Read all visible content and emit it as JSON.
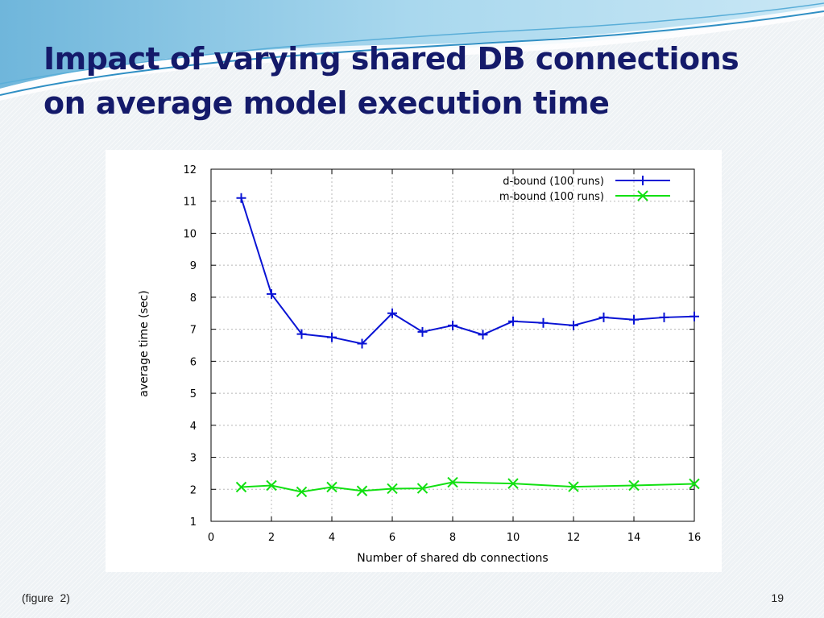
{
  "slide": {
    "title_line1": "Impact of varying shared DB connections",
    "title_line2": "on average model execution time",
    "caption": "(figure  2)",
    "page_number": "19"
  },
  "colors": {
    "title": "#141a6a",
    "swoosh_light": "#9fd3ea",
    "swoosh_dark": "#2f8fc4",
    "d_bound": "#0a14d4",
    "m_bound": "#12e012",
    "grid": "#b8b8b8"
  },
  "chart_data": {
    "type": "line",
    "xlabel": "Number of shared db connections",
    "ylabel": "average time (sec)",
    "xlim": [
      0,
      16
    ],
    "ylim": [
      1,
      12
    ],
    "xticks": [
      0,
      2,
      4,
      6,
      8,
      10,
      12,
      14,
      16
    ],
    "yticks": [
      1,
      2,
      3,
      4,
      5,
      6,
      7,
      8,
      9,
      10,
      11,
      12
    ],
    "grid": true,
    "legend_position": "top-right",
    "series": [
      {
        "name": "d-bound (100 runs)",
        "marker": "plus",
        "color": "#0a14d4",
        "x": [
          1,
          2,
          3,
          4,
          5,
          6,
          7,
          8,
          9,
          10,
          11,
          12,
          13,
          14,
          15,
          16
        ],
        "y": [
          11.1,
          8.1,
          6.85,
          6.75,
          6.55,
          7.5,
          6.92,
          7.12,
          6.83,
          7.25,
          7.2,
          7.12,
          7.37,
          7.3,
          7.37,
          7.4
        ]
      },
      {
        "name": "m-bound (100 runs)",
        "marker": "x",
        "color": "#12e012",
        "x": [
          1,
          2,
          3,
          4,
          5,
          6,
          7,
          8,
          10,
          12,
          14,
          16
        ],
        "y": [
          2.07,
          2.12,
          1.92,
          2.07,
          1.95,
          2.02,
          2.03,
          2.22,
          2.18,
          2.08,
          2.12,
          2.17
        ]
      }
    ]
  }
}
